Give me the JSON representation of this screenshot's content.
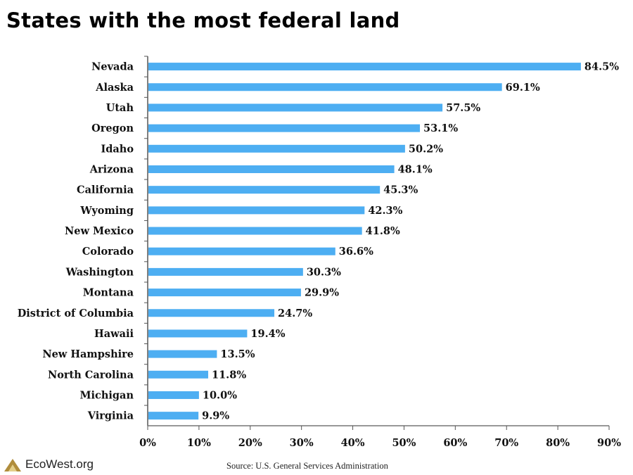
{
  "chart_data": {
    "type": "bar",
    "orientation": "horizontal",
    "title": "States with the most federal land",
    "categories": [
      "Nevada",
      "Alaska",
      "Utah",
      "Oregon",
      "Idaho",
      "Arizona",
      "California",
      "Wyoming",
      "New Mexico",
      "Colorado",
      "Washington",
      "Montana",
      "District of Columbia",
      "Hawaii",
      "New Hampshire",
      "North Carolina",
      "Michigan",
      "Virginia"
    ],
    "values": [
      84.5,
      69.1,
      57.5,
      53.1,
      50.2,
      48.1,
      45.3,
      42.3,
      41.8,
      36.6,
      30.3,
      29.9,
      24.7,
      19.4,
      13.5,
      11.8,
      10.0,
      9.9
    ],
    "value_labels": [
      "84.5%",
      "69.1%",
      "57.5%",
      "53.1%",
      "50.2%",
      "48.1%",
      "45.3%",
      "42.3%",
      "41.8%",
      "36.6%",
      "30.3%",
      "29.9%",
      "24.7%",
      "19.4%",
      "13.5%",
      "11.8%",
      "10.0%",
      "9.9%"
    ],
    "xlim": [
      0,
      90
    ],
    "xticks": [
      "0%",
      "10%",
      "20%",
      "30%",
      "40%",
      "50%",
      "60%",
      "70%",
      "80%",
      "90%"
    ],
    "bar_color": "#4daef2",
    "grid": false,
    "xlabel": "",
    "ylabel": ""
  },
  "footer": {
    "logo_text": "EcoWest.org",
    "source": "Source: U.S. General Services Administration"
  }
}
